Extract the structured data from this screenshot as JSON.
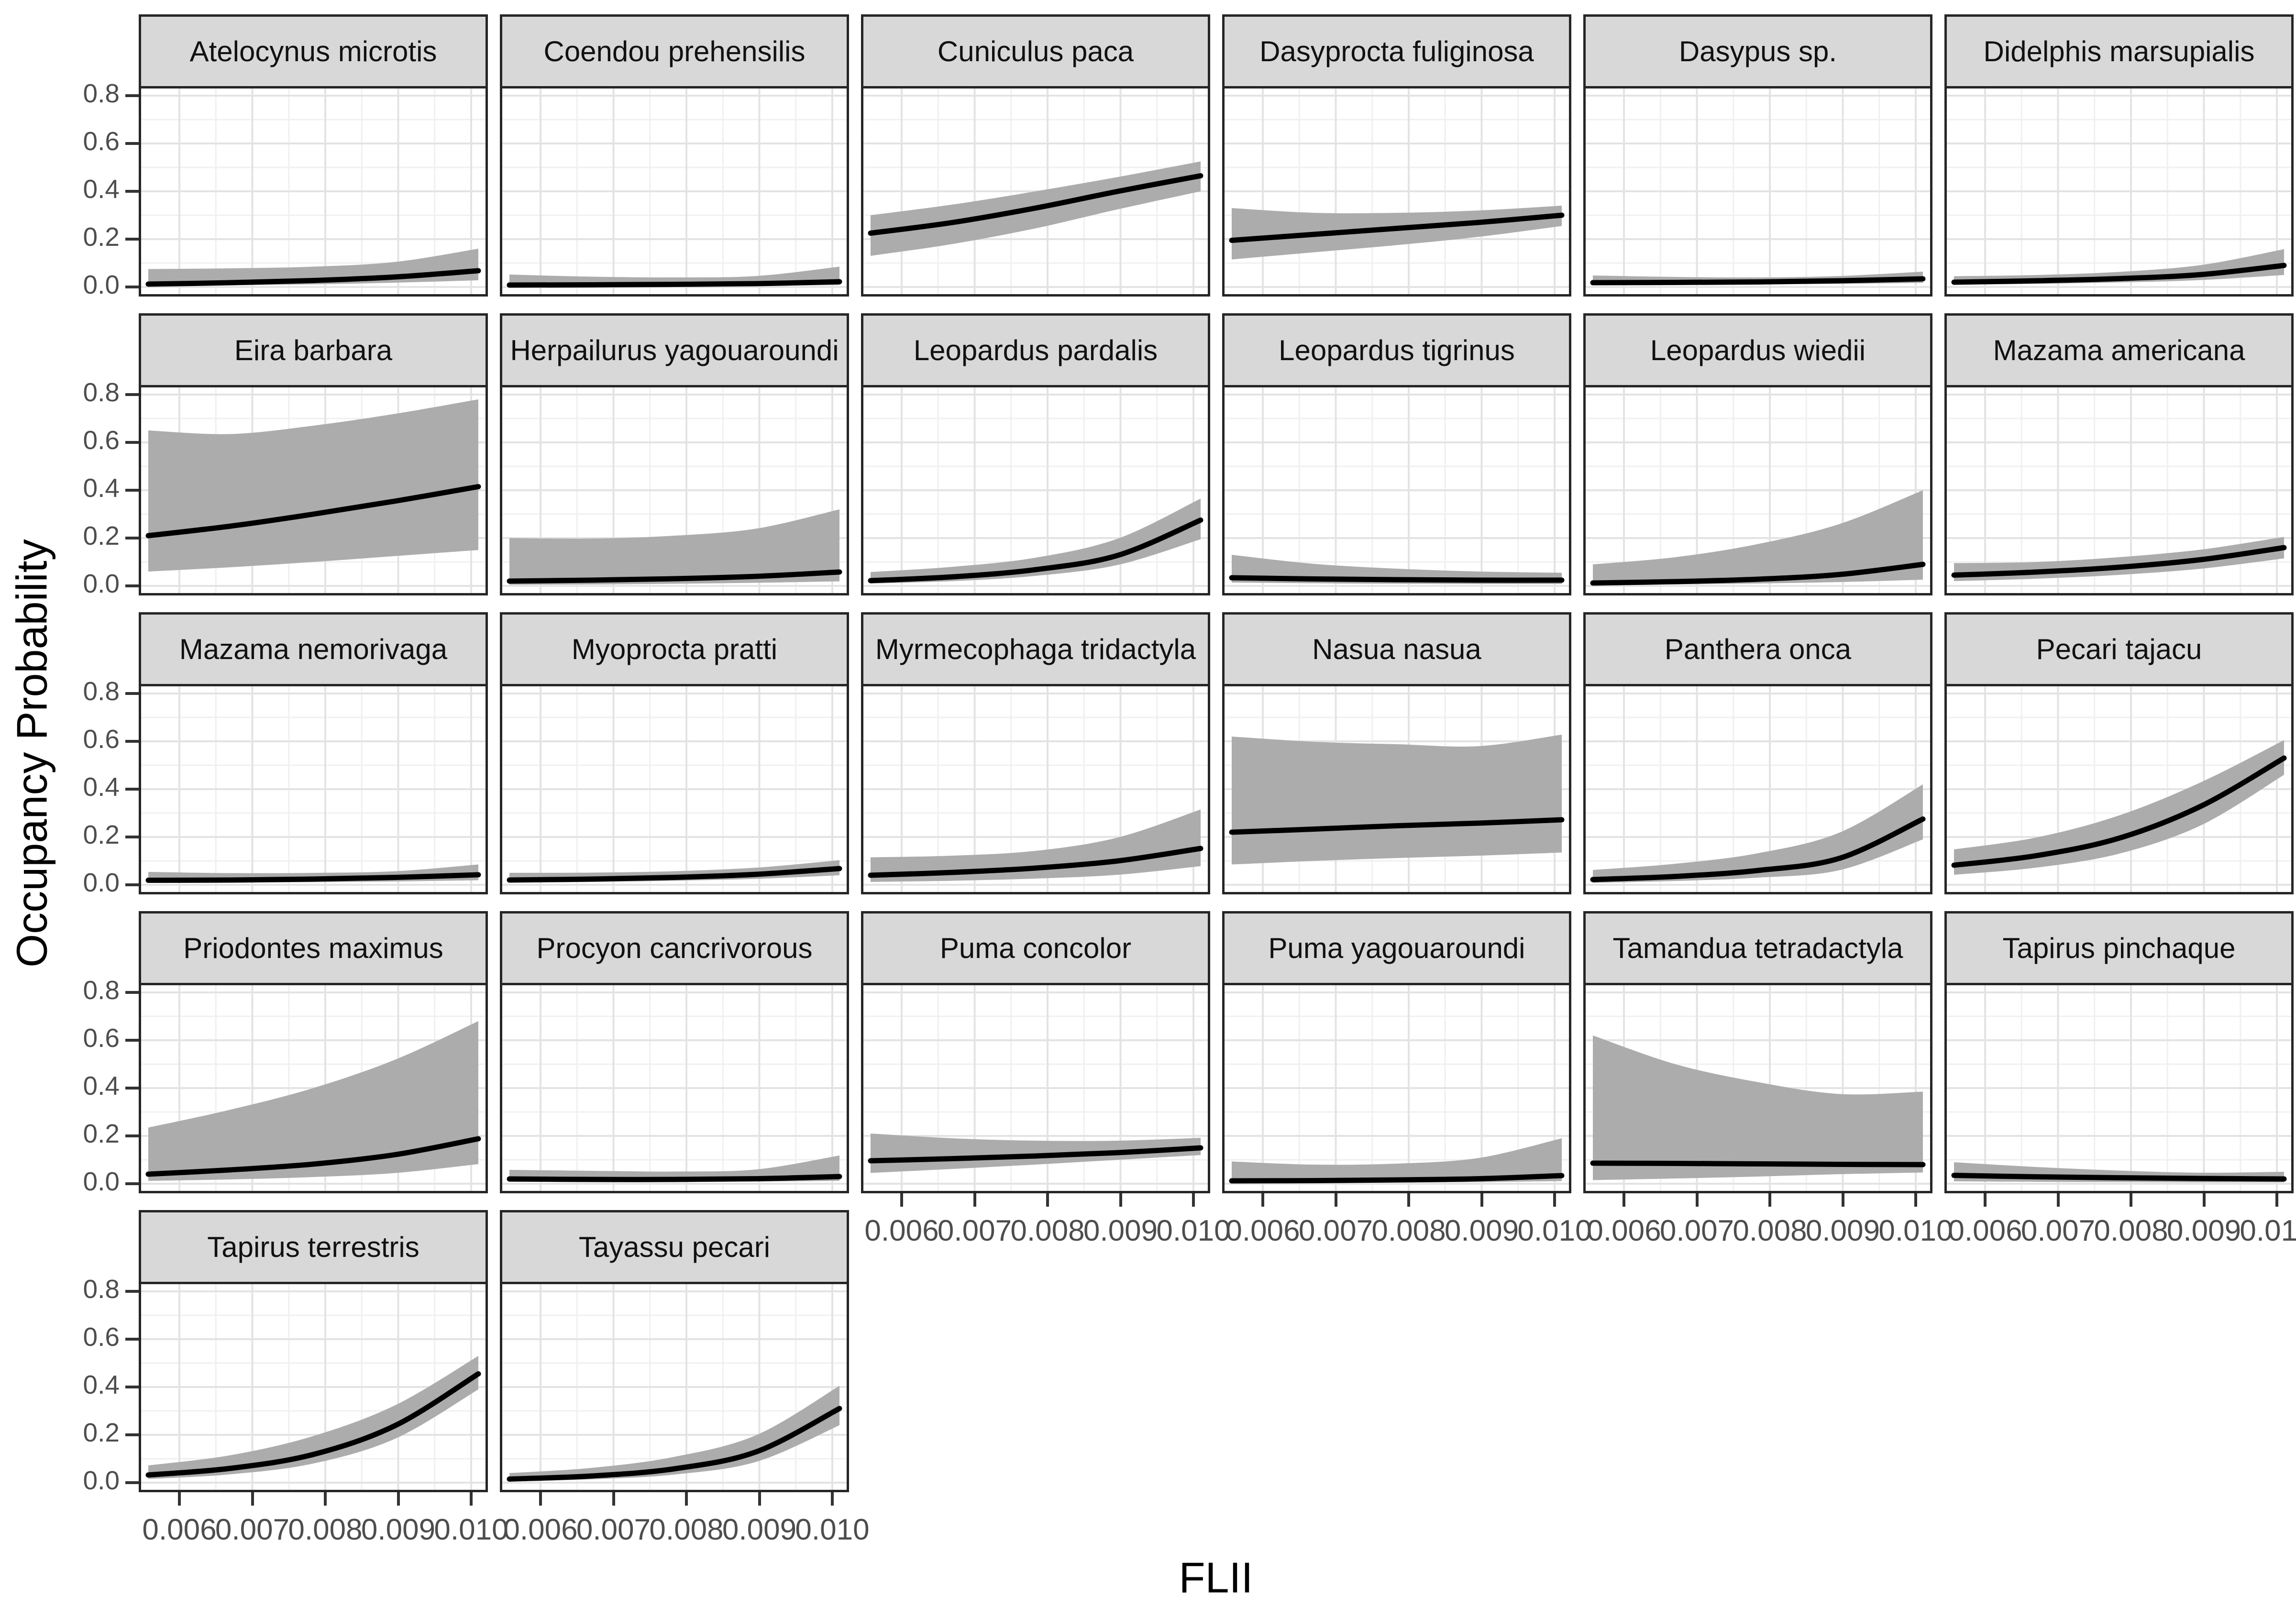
{
  "figure": {
    "y_label": "Occupancy Probability",
    "x_label": "FLII",
    "x_ticks": [
      "0.006",
      "0.007",
      "0.008",
      "0.009",
      "0.010"
    ],
    "y_ticks": [
      {
        "value": 0.8,
        "label": "0.8"
      },
      {
        "value": 0.6,
        "label": "0.6"
      },
      {
        "value": 0.4,
        "label": "0.4"
      },
      {
        "value": 0.2,
        "label": "0.2"
      },
      {
        "value": 0.0,
        "label": "0.0"
      }
    ],
    "colors": {
      "ribbon": "#ACACAC",
      "mean_line": "#000000",
      "strip_bg": "#D8D8D8",
      "panel_border": "#262626",
      "grid_major": "#E3E3E3",
      "grid_minor": "#F0F0F0",
      "axis_text": "#4D4D4D",
      "tick_mark": "#333333"
    }
  },
  "chart_data": {
    "type": "line",
    "subtype": "faceted line with confidence ribbon",
    "xlabel": "FLII",
    "ylabel": "Occupancy Probability",
    "x": [
      0.006,
      0.007,
      0.008,
      0.009,
      0.01
    ],
    "xlim": [
      0.0055,
      0.0102
    ],
    "ylim": [
      0,
      0.8
    ],
    "grid": true,
    "legend": false,
    "layout": {
      "ncol": 6,
      "nrow": 5,
      "facet_by": "species"
    },
    "panels": [
      {
        "species": "Atelocynus microtis",
        "mean": [
          0.012,
          0.018,
          0.027,
          0.042,
          0.068
        ],
        "lower": [
          0.004,
          0.007,
          0.011,
          0.018,
          0.028
        ],
        "upper": [
          0.075,
          0.078,
          0.085,
          0.105,
          0.16
        ]
      },
      {
        "species": "Coendou prehensilis",
        "mean": [
          0.008,
          0.009,
          0.011,
          0.014,
          0.022
        ],
        "lower": [
          0.002,
          0.003,
          0.004,
          0.005,
          0.008
        ],
        "upper": [
          0.052,
          0.043,
          0.04,
          0.046,
          0.085
        ]
      },
      {
        "species": "Cuniculus paca",
        "mean": [
          0.225,
          0.27,
          0.33,
          0.4,
          0.465
        ],
        "lower": [
          0.13,
          0.18,
          0.245,
          0.325,
          0.4
        ],
        "upper": [
          0.3,
          0.345,
          0.4,
          0.46,
          0.525
        ]
      },
      {
        "species": "Dasyprocta fuliginosa",
        "mean": [
          0.195,
          0.22,
          0.245,
          0.27,
          0.3
        ],
        "lower": [
          0.115,
          0.145,
          0.175,
          0.21,
          0.255
        ],
        "upper": [
          0.33,
          0.31,
          0.31,
          0.32,
          0.34
        ]
      },
      {
        "species": "Dasypus sp.",
        "mean": [
          0.018,
          0.019,
          0.021,
          0.026,
          0.034
        ],
        "lower": [
          0.008,
          0.009,
          0.011,
          0.013,
          0.017
        ],
        "upper": [
          0.048,
          0.042,
          0.04,
          0.046,
          0.064
        ]
      },
      {
        "species": "Didelphis marsupialis",
        "mean": [
          0.02,
          0.026,
          0.035,
          0.052,
          0.09
        ],
        "lower": [
          0.01,
          0.013,
          0.019,
          0.029,
          0.05
        ],
        "upper": [
          0.045,
          0.05,
          0.063,
          0.092,
          0.158
        ]
      },
      {
        "species": "Eira barbara",
        "mean": [
          0.21,
          0.25,
          0.3,
          0.355,
          0.415
        ],
        "lower": [
          0.06,
          0.078,
          0.1,
          0.125,
          0.15
        ],
        "upper": [
          0.65,
          0.635,
          0.67,
          0.72,
          0.78
        ]
      },
      {
        "species": "Herpailurus yagouaroundi",
        "mean": [
          0.02,
          0.024,
          0.03,
          0.04,
          0.058
        ],
        "lower": [
          0.005,
          0.006,
          0.009,
          0.013,
          0.019
        ],
        "upper": [
          0.2,
          0.198,
          0.21,
          0.24,
          0.32
        ]
      },
      {
        "species": "Leopardus pardalis",
        "mean": [
          0.022,
          0.038,
          0.068,
          0.128,
          0.275
        ],
        "lower": [
          0.01,
          0.02,
          0.042,
          0.088,
          0.195
        ],
        "upper": [
          0.058,
          0.08,
          0.118,
          0.198,
          0.365
        ]
      },
      {
        "species": "Leopardus tigrinus",
        "mean": [
          0.034,
          0.029,
          0.026,
          0.024,
          0.024
        ],
        "lower": [
          0.014,
          0.011,
          0.009,
          0.008,
          0.008
        ],
        "upper": [
          0.13,
          0.092,
          0.072,
          0.06,
          0.055
        ]
      },
      {
        "species": "Leopardus wiedii",
        "mean": [
          0.012,
          0.018,
          0.028,
          0.048,
          0.09
        ],
        "lower": [
          0.004,
          0.006,
          0.01,
          0.016,
          0.026
        ],
        "upper": [
          0.09,
          0.12,
          0.175,
          0.26,
          0.4
        ]
      },
      {
        "species": "Mazama americana",
        "mean": [
          0.045,
          0.058,
          0.078,
          0.11,
          0.16
        ],
        "lower": [
          0.02,
          0.03,
          0.046,
          0.072,
          0.115
        ],
        "upper": [
          0.095,
          0.1,
          0.12,
          0.152,
          0.205
        ]
      },
      {
        "species": "Mazama nemorivaga",
        "mean": [
          0.019,
          0.02,
          0.024,
          0.031,
          0.042
        ],
        "lower": [
          0.008,
          0.009,
          0.011,
          0.014,
          0.019
        ],
        "upper": [
          0.054,
          0.049,
          0.05,
          0.057,
          0.085
        ]
      },
      {
        "species": "Myoprocta pratti",
        "mean": [
          0.02,
          0.024,
          0.031,
          0.044,
          0.068
        ],
        "lower": [
          0.01,
          0.012,
          0.017,
          0.025,
          0.04
        ],
        "upper": [
          0.05,
          0.051,
          0.057,
          0.072,
          0.103
        ]
      },
      {
        "species": "Myrmecophaga tridactyla",
        "mean": [
          0.04,
          0.052,
          0.07,
          0.1,
          0.152
        ],
        "lower": [
          0.012,
          0.017,
          0.026,
          0.042,
          0.078
        ],
        "upper": [
          0.115,
          0.122,
          0.142,
          0.198,
          0.315
        ]
      },
      {
        "species": "Nasua nasua",
        "mean": [
          0.22,
          0.233,
          0.247,
          0.258,
          0.272
        ],
        "lower": [
          0.085,
          0.1,
          0.112,
          0.122,
          0.135
        ],
        "upper": [
          0.62,
          0.598,
          0.588,
          0.58,
          0.628
        ]
      },
      {
        "species": "Panthera onca",
        "mean": [
          0.022,
          0.035,
          0.06,
          0.112,
          0.275
        ],
        "lower": [
          0.008,
          0.016,
          0.03,
          0.062,
          0.19
        ],
        "upper": [
          0.062,
          0.088,
          0.132,
          0.22,
          0.42
        ]
      },
      {
        "species": "Pecari tajacu",
        "mean": [
          0.082,
          0.122,
          0.195,
          0.33,
          0.53
        ],
        "lower": [
          0.042,
          0.072,
          0.13,
          0.25,
          0.46
        ],
        "upper": [
          0.148,
          0.198,
          0.29,
          0.43,
          0.605
        ]
      },
      {
        "species": "Priodontes maximus",
        "mean": [
          0.04,
          0.058,
          0.082,
          0.122,
          0.188
        ],
        "lower": [
          0.012,
          0.018,
          0.028,
          0.045,
          0.082
        ],
        "upper": [
          0.235,
          0.31,
          0.4,
          0.52,
          0.68
        ]
      },
      {
        "species": "Procyon cancrivorous",
        "mean": [
          0.02,
          0.018,
          0.018,
          0.021,
          0.03
        ],
        "lower": [
          0.008,
          0.008,
          0.008,
          0.009,
          0.012
        ],
        "upper": [
          0.058,
          0.054,
          0.051,
          0.06,
          0.118
        ]
      },
      {
        "species": "Puma concolor",
        "mean": [
          0.096,
          0.105,
          0.116,
          0.13,
          0.15
        ],
        "lower": [
          0.045,
          0.062,
          0.08,
          0.1,
          0.12
        ],
        "upper": [
          0.21,
          0.19,
          0.18,
          0.18,
          0.192
        ]
      },
      {
        "species": "Puma yagouaroundi",
        "mean": [
          0.012,
          0.013,
          0.016,
          0.021,
          0.034
        ],
        "lower": [
          0.004,
          0.004,
          0.005,
          0.007,
          0.011
        ],
        "upper": [
          0.093,
          0.08,
          0.084,
          0.108,
          0.19
        ]
      },
      {
        "species": "Tamandua tetradactyla",
        "mean": [
          0.086,
          0.085,
          0.083,
          0.081,
          0.08
        ],
        "lower": [
          0.015,
          0.022,
          0.03,
          0.04,
          0.047
        ],
        "upper": [
          0.62,
          0.5,
          0.425,
          0.375,
          0.385
        ]
      },
      {
        "species": "Tapirus pinchaque",
        "mean": [
          0.035,
          0.029,
          0.025,
          0.022,
          0.02
        ],
        "lower": [
          0.01,
          0.008,
          0.007,
          0.006,
          0.006
        ],
        "upper": [
          0.09,
          0.07,
          0.055,
          0.046,
          0.05
        ]
      },
      {
        "species": "Tapirus terrestris",
        "mean": [
          0.032,
          0.06,
          0.118,
          0.24,
          0.455
        ],
        "lower": [
          0.015,
          0.035,
          0.08,
          0.185,
          0.39
        ],
        "upper": [
          0.072,
          0.115,
          0.195,
          0.325,
          0.53
        ]
      },
      {
        "species": "Tayassu pecari",
        "mean": [
          0.015,
          0.028,
          0.058,
          0.13,
          0.31
        ],
        "lower": [
          0.006,
          0.014,
          0.034,
          0.088,
          0.24
        ],
        "upper": [
          0.04,
          0.062,
          0.108,
          0.2,
          0.405
        ]
      }
    ]
  }
}
